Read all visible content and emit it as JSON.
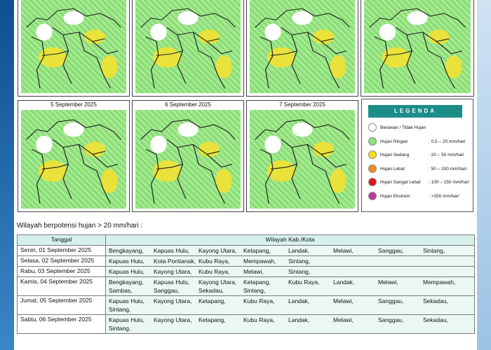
{
  "maps": [
    {
      "date": ""
    },
    {
      "date": ""
    },
    {
      "date": ""
    },
    {
      "date": ""
    },
    {
      "date": "5 September 2025"
    },
    {
      "date": "6 September 2025"
    },
    {
      "date": "7 September 2025"
    }
  ],
  "legend": {
    "title": "LEGENDA",
    "items": [
      {
        "label": "Berawan / Tidak Hujan",
        "range": "",
        "color": "#ffffff"
      },
      {
        "label": "Hujan Ringan",
        "range": ": 0.5 – 20 mm/hari",
        "color": "#8fe07e"
      },
      {
        "label": "Hujan Sedang",
        "range": ": 20 – 50 mm/hari",
        "color": "#f5e316"
      },
      {
        "label": "Hujan Lebat",
        "range": ": 50 – 100 mm/hari",
        "color": "#ef8f22"
      },
      {
        "label": "Hujan Sangat Lebat",
        "range": ": 100 – 150 mm/hari",
        "color": "#e01414"
      },
      {
        "label": "Hujan Ekstrem",
        "range": ": >150 mm/hari",
        "color": "#c2399e"
      }
    ]
  },
  "section_title": "Wilayah berpotensi hujan > 20 mm/hari :",
  "table": {
    "headers": [
      "Tanggal",
      "Wilayah Kab./Kota"
    ],
    "rows": [
      {
        "date": "Senin, 01 September 2025",
        "regions": [
          "Bengkayang,",
          "Kapuas Hulu,",
          "Kayong Utara,",
          "Ketapang,",
          "Landak,",
          "Melawi,",
          "Sanggau,",
          "Sintang,"
        ]
      },
      {
        "date": "Selasa, 02 September 2025",
        "regions": [
          "Kapuas Hulu,",
          "Kota Pontianak,",
          "Kubu Raya,",
          "Mempawah,",
          "Sintang,"
        ]
      },
      {
        "date": "Rabu, 03 September 2025",
        "regions": [
          "Kapuas Hulu,",
          "Kayong Utara,",
          "Kubu Raya,",
          "Melawi,",
          "Sintang,"
        ]
      },
      {
        "date": "Kamis, 04 September 2025",
        "regions": [
          "Bengkayang,",
          "Kapuas Hulu,",
          "Kayong Utara,",
          "Ketapang,",
          "Kubu Raya,",
          "Landak,",
          "Melawi,",
          "Mempawah,",
          "Sambas,",
          "Sanggau,",
          "Sekadau,",
          "Sintang,"
        ]
      },
      {
        "date": "Jumat, 05 September 2025",
        "regions": [
          "Kapuas Hulu,",
          "Kayong Utara,",
          "Ketapang,",
          "Kubu Raya,",
          "Landak,",
          "Melawi,",
          "Sanggau,",
          "Sekadau,",
          "Sintang,"
        ]
      },
      {
        "date": "Sabtu, 06 September 2025",
        "regions": [
          "Kapuas Hulu,",
          "Kayong Utara,",
          "Ketapang,",
          "Kubu Raya,",
          "Landak,",
          "Melawi,",
          "Sanggau,",
          "Sekadau,",
          "Sintang,"
        ]
      }
    ]
  }
}
